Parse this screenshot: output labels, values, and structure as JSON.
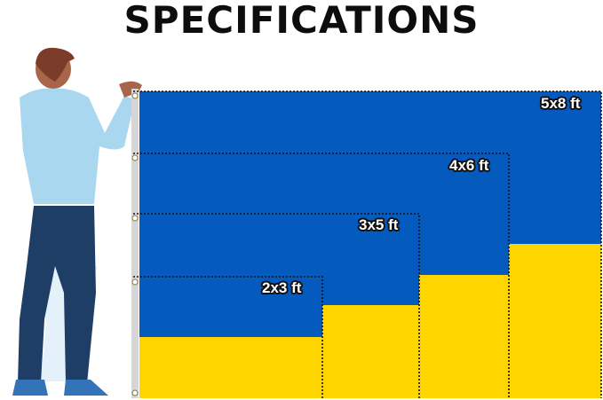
{
  "title": "SPECIFICATIONS",
  "colors": {
    "blue": "#045ABD",
    "yellow": "#FFD500",
    "shirt": "#A9D7F0",
    "pants": "#1E3E66"
  },
  "sizes": [
    {
      "label": "2x3 ft"
    },
    {
      "label": "3x5 ft"
    },
    {
      "label": "4x6 ft"
    },
    {
      "label": "5x8 ft"
    }
  ]
}
